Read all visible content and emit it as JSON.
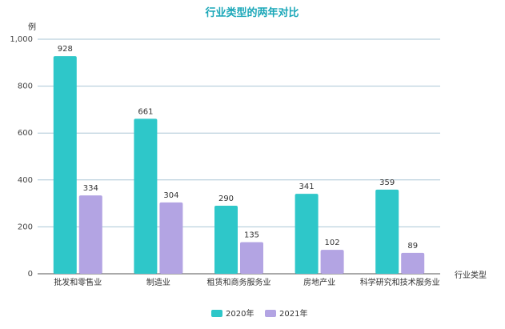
{
  "chart_data": {
    "type": "bar",
    "title": "行业类型的两年对比",
    "ylabel": "例",
    "xlabel": "行业类型",
    "categories": [
      "批发和零售业",
      "制造业",
      "租赁和商务服务业",
      "房地产业",
      "科学研究和技术服务业"
    ],
    "series": [
      {
        "name": "2020年",
        "values": [
          928,
          661,
          290,
          341,
          359
        ],
        "color": "#2ec7c9"
      },
      {
        "name": "2021年",
        "values": [
          334,
          304,
          135,
          102,
          89
        ],
        "color": "#b3a4e3"
      }
    ],
    "ylim": [
      0,
      1000
    ],
    "yticks": [
      0,
      200,
      400,
      600,
      800,
      1000
    ],
    "ytick_labels": [
      "0",
      "200",
      "400",
      "600",
      "800",
      "1,000"
    ],
    "grid": true,
    "legend_position": "bottom-center"
  }
}
